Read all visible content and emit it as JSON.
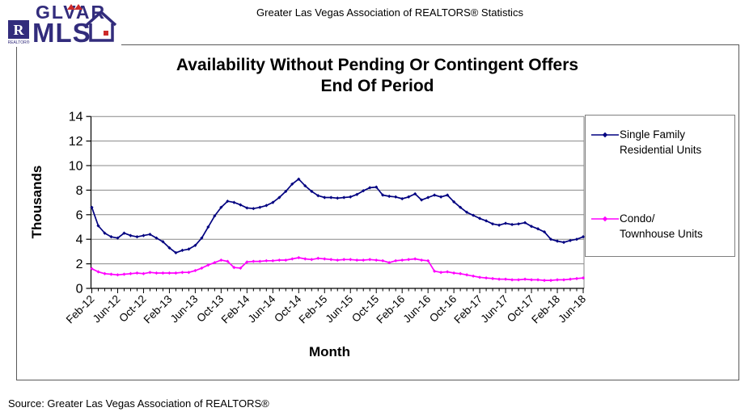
{
  "header": {
    "title": "Greater Las Vegas Association of REALTORS® Statistics"
  },
  "logo": {
    "glvar": "GLVAR",
    "mls": "MLS",
    "realtor_r": "R",
    "realtor_text": "REALTOR®",
    "navy": "#322c7c",
    "red": "#cc2a2a"
  },
  "chart": {
    "title_line1": "Availability Without Pending Or Contingent Offers",
    "title_line2": "End Of Period",
    "y_axis_label": "Thousands",
    "x_axis_label": "Month",
    "legend": [
      {
        "line1": "Single Family",
        "line2": "Residential Units",
        "color": "#000080"
      },
      {
        "line1": "Condo/",
        "line2": "Townhouse Units",
        "color": "#FF00FF"
      }
    ]
  },
  "chart_data": {
    "type": "line",
    "title": "Availability Without Pending Or Contingent Offers End Of Period",
    "xlabel": "Month",
    "ylabel": "Thousands",
    "ylim": [
      0,
      14
    ],
    "y_ticks": [
      0,
      2,
      4,
      6,
      8,
      10,
      12,
      14
    ],
    "x_tick_labels": [
      "Feb-12",
      "Jun-12",
      "Oct-12",
      "Feb-13",
      "Jun-13",
      "Oct-13",
      "Feb-14",
      "Jun-14",
      "Oct-14",
      "Feb-15",
      "Jun-15",
      "Oct-15",
      "Feb-16",
      "Jun-16",
      "Oct-16",
      "Feb-17",
      "Jun-17",
      "Oct-17",
      "Feb-18",
      "Jun-18"
    ],
    "x_tick_every": 4,
    "x_start": "Feb-12",
    "x_end": "Jun-18",
    "x_interval": "monthly",
    "grid": "horizontal",
    "legend_position": "right",
    "series": [
      {
        "name": "Single Family Residential Units",
        "color": "#000080",
        "marker": "diamond",
        "values": [
          6.6,
          5.1,
          4.5,
          4.2,
          4.1,
          4.5,
          4.3,
          4.2,
          4.3,
          4.4,
          4.1,
          3.8,
          3.3,
          2.9,
          3.1,
          3.2,
          3.5,
          4.1,
          5.0,
          5.9,
          6.6,
          7.1,
          7.0,
          6.8,
          6.55,
          6.5,
          6.6,
          6.75,
          7.0,
          7.4,
          7.9,
          8.5,
          8.9,
          8.35,
          7.9,
          7.55,
          7.4,
          7.4,
          7.35,
          7.4,
          7.45,
          7.65,
          7.95,
          8.2,
          8.25,
          7.6,
          7.5,
          7.45,
          7.3,
          7.45,
          7.7,
          7.2,
          7.4,
          7.6,
          7.45,
          7.6,
          7.05,
          6.6,
          6.2,
          5.95,
          5.7,
          5.5,
          5.25,
          5.15,
          5.3,
          5.2,
          5.25,
          5.35,
          5.05,
          4.85,
          4.6,
          4.0,
          3.85,
          3.75,
          3.9,
          4.0,
          4.2
        ]
      },
      {
        "name": "Condo/Townhouse Units",
        "color": "#FF00FF",
        "marker": "diamond",
        "values": [
          1.6,
          1.35,
          1.2,
          1.15,
          1.1,
          1.15,
          1.2,
          1.25,
          1.2,
          1.3,
          1.25,
          1.25,
          1.25,
          1.25,
          1.3,
          1.3,
          1.45,
          1.65,
          1.9,
          2.1,
          2.3,
          2.2,
          1.7,
          1.65,
          2.15,
          2.2,
          2.2,
          2.25,
          2.25,
          2.3,
          2.3,
          2.4,
          2.5,
          2.4,
          2.35,
          2.45,
          2.4,
          2.35,
          2.3,
          2.35,
          2.35,
          2.3,
          2.3,
          2.35,
          2.3,
          2.25,
          2.1,
          2.25,
          2.3,
          2.35,
          2.4,
          2.3,
          2.25,
          1.4,
          1.3,
          1.35,
          1.25,
          1.2,
          1.1,
          1.0,
          0.9,
          0.85,
          0.8,
          0.75,
          0.75,
          0.7,
          0.7,
          0.75,
          0.7,
          0.7,
          0.65,
          0.65,
          0.7,
          0.7,
          0.75,
          0.8,
          0.85
        ]
      }
    ]
  },
  "footer": {
    "source": "Source: Greater Las Vegas Association of REALTORS®"
  }
}
